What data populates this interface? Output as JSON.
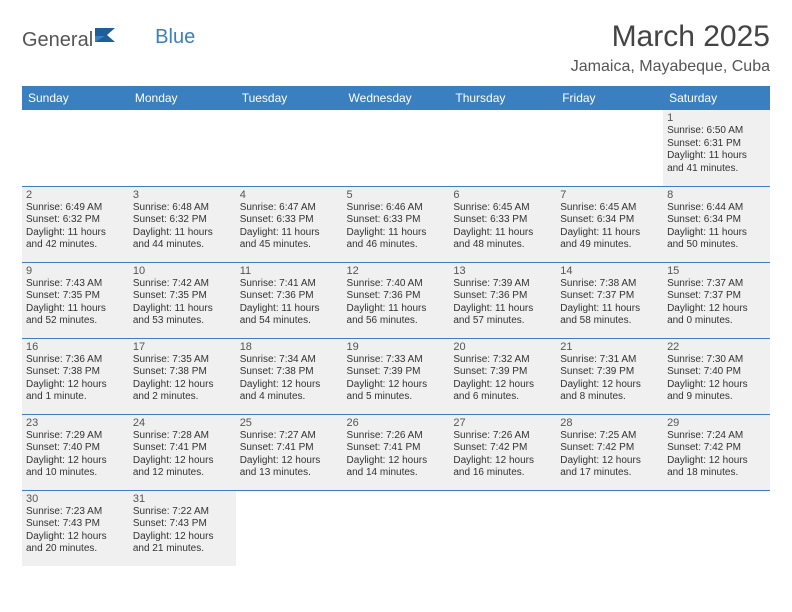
{
  "brand": {
    "part1": "General",
    "part2": "Blue",
    "logo_color": "#3a7fbf"
  },
  "title": "March 2025",
  "location": "Jamaica, Mayabeque, Cuba",
  "theme": {
    "header_bg": "#3a7fbf",
    "header_fg": "#ffffff",
    "cell_fill_bg": "#f0f0f0",
    "row_border": "#3a7fbf",
    "page_bg": "#ffffff"
  },
  "weekdays": [
    "Sunday",
    "Monday",
    "Tuesday",
    "Wednesday",
    "Thursday",
    "Friday",
    "Saturday"
  ],
  "weeks": [
    [
      null,
      null,
      null,
      null,
      null,
      null,
      {
        "n": "1",
        "sr": "6:50 AM",
        "ss": "6:31 PM",
        "dl": "11 hours and 41 minutes."
      }
    ],
    [
      {
        "n": "2",
        "sr": "6:49 AM",
        "ss": "6:32 PM",
        "dl": "11 hours and 42 minutes."
      },
      {
        "n": "3",
        "sr": "6:48 AM",
        "ss": "6:32 PM",
        "dl": "11 hours and 44 minutes."
      },
      {
        "n": "4",
        "sr": "6:47 AM",
        "ss": "6:33 PM",
        "dl": "11 hours and 45 minutes."
      },
      {
        "n": "5",
        "sr": "6:46 AM",
        "ss": "6:33 PM",
        "dl": "11 hours and 46 minutes."
      },
      {
        "n": "6",
        "sr": "6:45 AM",
        "ss": "6:33 PM",
        "dl": "11 hours and 48 minutes."
      },
      {
        "n": "7",
        "sr": "6:45 AM",
        "ss": "6:34 PM",
        "dl": "11 hours and 49 minutes."
      },
      {
        "n": "8",
        "sr": "6:44 AM",
        "ss": "6:34 PM",
        "dl": "11 hours and 50 minutes."
      }
    ],
    [
      {
        "n": "9",
        "sr": "7:43 AM",
        "ss": "7:35 PM",
        "dl": "11 hours and 52 minutes."
      },
      {
        "n": "10",
        "sr": "7:42 AM",
        "ss": "7:35 PM",
        "dl": "11 hours and 53 minutes."
      },
      {
        "n": "11",
        "sr": "7:41 AM",
        "ss": "7:36 PM",
        "dl": "11 hours and 54 minutes."
      },
      {
        "n": "12",
        "sr": "7:40 AM",
        "ss": "7:36 PM",
        "dl": "11 hours and 56 minutes."
      },
      {
        "n": "13",
        "sr": "7:39 AM",
        "ss": "7:36 PM",
        "dl": "11 hours and 57 minutes."
      },
      {
        "n": "14",
        "sr": "7:38 AM",
        "ss": "7:37 PM",
        "dl": "11 hours and 58 minutes."
      },
      {
        "n": "15",
        "sr": "7:37 AM",
        "ss": "7:37 PM",
        "dl": "12 hours and 0 minutes."
      }
    ],
    [
      {
        "n": "16",
        "sr": "7:36 AM",
        "ss": "7:38 PM",
        "dl": "12 hours and 1 minute."
      },
      {
        "n": "17",
        "sr": "7:35 AM",
        "ss": "7:38 PM",
        "dl": "12 hours and 2 minutes."
      },
      {
        "n": "18",
        "sr": "7:34 AM",
        "ss": "7:38 PM",
        "dl": "12 hours and 4 minutes."
      },
      {
        "n": "19",
        "sr": "7:33 AM",
        "ss": "7:39 PM",
        "dl": "12 hours and 5 minutes."
      },
      {
        "n": "20",
        "sr": "7:32 AM",
        "ss": "7:39 PM",
        "dl": "12 hours and 6 minutes."
      },
      {
        "n": "21",
        "sr": "7:31 AM",
        "ss": "7:39 PM",
        "dl": "12 hours and 8 minutes."
      },
      {
        "n": "22",
        "sr": "7:30 AM",
        "ss": "7:40 PM",
        "dl": "12 hours and 9 minutes."
      }
    ],
    [
      {
        "n": "23",
        "sr": "7:29 AM",
        "ss": "7:40 PM",
        "dl": "12 hours and 10 minutes."
      },
      {
        "n": "24",
        "sr": "7:28 AM",
        "ss": "7:41 PM",
        "dl": "12 hours and 12 minutes."
      },
      {
        "n": "25",
        "sr": "7:27 AM",
        "ss": "7:41 PM",
        "dl": "12 hours and 13 minutes."
      },
      {
        "n": "26",
        "sr": "7:26 AM",
        "ss": "7:41 PM",
        "dl": "12 hours and 14 minutes."
      },
      {
        "n": "27",
        "sr": "7:26 AM",
        "ss": "7:42 PM",
        "dl": "12 hours and 16 minutes."
      },
      {
        "n": "28",
        "sr": "7:25 AM",
        "ss": "7:42 PM",
        "dl": "12 hours and 17 minutes."
      },
      {
        "n": "29",
        "sr": "7:24 AM",
        "ss": "7:42 PM",
        "dl": "12 hours and 18 minutes."
      }
    ],
    [
      {
        "n": "30",
        "sr": "7:23 AM",
        "ss": "7:43 PM",
        "dl": "12 hours and 20 minutes."
      },
      {
        "n": "31",
        "sr": "7:22 AM",
        "ss": "7:43 PM",
        "dl": "12 hours and 21 minutes."
      },
      null,
      null,
      null,
      null,
      null
    ]
  ],
  "labels": {
    "sunrise": "Sunrise:",
    "sunset": "Sunset:",
    "daylight": "Daylight:"
  }
}
